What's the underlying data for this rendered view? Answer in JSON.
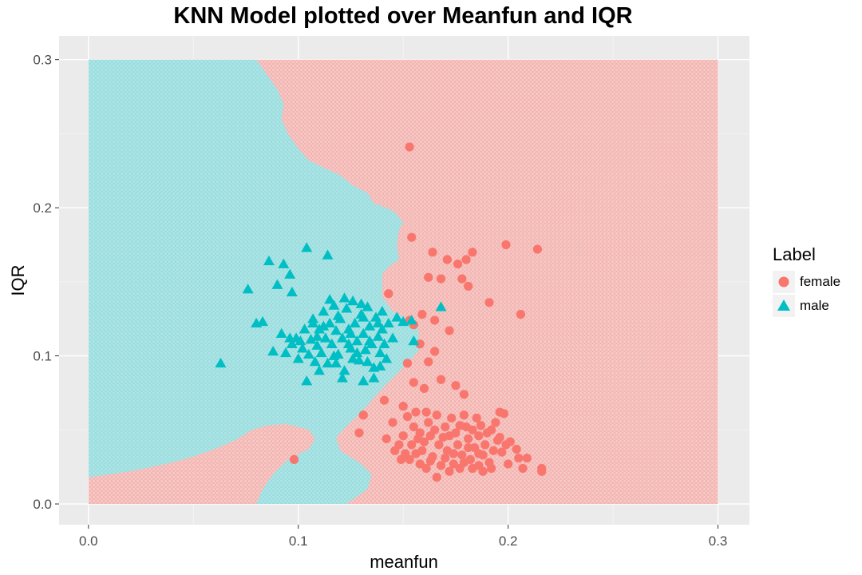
{
  "chart_data": {
    "type": "scatter",
    "title": "KNN Model plotted over Meanfun and IQR",
    "xlabel": "meanfun",
    "ylabel": "IQR",
    "xlim": [
      -0.014,
      0.315
    ],
    "ylim": [
      -0.014,
      0.316
    ],
    "x_ticks": [
      0.0,
      0.1,
      0.2,
      0.3
    ],
    "x_tick_labels": [
      "0.0",
      "0.1",
      "0.2",
      "0.3"
    ],
    "y_ticks": [
      0.0,
      0.1,
      0.2,
      0.3
    ],
    "y_tick_labels": [
      "0.0",
      "0.1",
      "0.2",
      "0.3"
    ],
    "grid": true,
    "panel_background": "#ebebeb",
    "legend": {
      "title": "Label",
      "position": "right",
      "entries": [
        {
          "name": "female",
          "color": "#f8766d",
          "shape": "circle"
        },
        {
          "name": "male",
          "color": "#00bfc4",
          "shape": "triangle"
        }
      ]
    },
    "decision_region": {
      "x_range": [
        0.0,
        0.3
      ],
      "y_range": [
        0.0,
        0.3
      ],
      "male_boundary_upper": [
        [
          0.0,
          0.3
        ],
        [
          0.08,
          0.3
        ],
        [
          0.085,
          0.29
        ],
        [
          0.09,
          0.28
        ],
        [
          0.093,
          0.27
        ],
        [
          0.092,
          0.26
        ],
        [
          0.095,
          0.25
        ],
        [
          0.1,
          0.24
        ],
        [
          0.105,
          0.232
        ],
        [
          0.112,
          0.227
        ],
        [
          0.12,
          0.222
        ],
        [
          0.126,
          0.215
        ],
        [
          0.133,
          0.21
        ],
        [
          0.136,
          0.203
        ],
        [
          0.142,
          0.2
        ],
        [
          0.146,
          0.197
        ],
        [
          0.15,
          0.19
        ],
        [
          0.148,
          0.185
        ],
        [
          0.147,
          0.175
        ],
        [
          0.148,
          0.165
        ],
        [
          0.143,
          0.16
        ],
        [
          0.14,
          0.155
        ],
        [
          0.14,
          0.14
        ],
        [
          0.145,
          0.13
        ],
        [
          0.152,
          0.125
        ],
        [
          0.157,
          0.12
        ],
        [
          0.158,
          0.105
        ],
        [
          0.152,
          0.095
        ],
        [
          0.145,
          0.085
        ],
        [
          0.14,
          0.078
        ],
        [
          0.135,
          0.07
        ],
        [
          0.13,
          0.062
        ],
        [
          0.124,
          0.054
        ],
        [
          0.118,
          0.045
        ],
        [
          0.12,
          0.036
        ],
        [
          0.13,
          0.027
        ],
        [
          0.135,
          0.02
        ],
        [
          0.133,
          0.01
        ],
        [
          0.123,
          0.0
        ]
      ],
      "male_boundary_lower": [
        [
          0.0,
          0.018
        ],
        [
          0.01,
          0.02
        ],
        [
          0.02,
          0.022
        ],
        [
          0.03,
          0.025
        ],
        [
          0.04,
          0.028
        ],
        [
          0.05,
          0.032
        ],
        [
          0.06,
          0.037
        ],
        [
          0.07,
          0.043
        ],
        [
          0.078,
          0.05
        ],
        [
          0.085,
          0.053
        ],
        [
          0.094,
          0.054
        ],
        [
          0.1,
          0.052
        ],
        [
          0.105,
          0.05
        ],
        [
          0.108,
          0.044
        ],
        [
          0.105,
          0.037
        ],
        [
          0.095,
          0.03
        ],
        [
          0.088,
          0.02
        ],
        [
          0.083,
          0.01
        ],
        [
          0.08,
          0.0
        ]
      ]
    },
    "series": [
      {
        "name": "female",
        "points": [
          [
            0.153,
            0.241
          ],
          [
            0.154,
            0.18
          ],
          [
            0.164,
            0.17
          ],
          [
            0.168,
            0.152
          ],
          [
            0.162,
            0.153
          ],
          [
            0.171,
            0.165
          ],
          [
            0.176,
            0.162
          ],
          [
            0.18,
            0.165
          ],
          [
            0.183,
            0.17
          ],
          [
            0.199,
            0.175
          ],
          [
            0.214,
            0.172
          ],
          [
            0.178,
            0.152
          ],
          [
            0.181,
            0.147
          ],
          [
            0.143,
            0.142
          ],
          [
            0.191,
            0.136
          ],
          [
            0.206,
            0.128
          ],
          [
            0.153,
            0.124
          ],
          [
            0.159,
            0.128
          ],
          [
            0.165,
            0.124
          ],
          [
            0.172,
            0.117
          ],
          [
            0.155,
            0.121
          ],
          [
            0.158,
            0.108
          ],
          [
            0.165,
            0.103
          ],
          [
            0.152,
            0.095
          ],
          [
            0.162,
            0.096
          ],
          [
            0.155,
            0.082
          ],
          [
            0.168,
            0.084
          ],
          [
            0.16,
            0.078
          ],
          [
            0.175,
            0.08
          ],
          [
            0.179,
            0.074
          ],
          [
            0.141,
            0.07
          ],
          [
            0.15,
            0.066
          ],
          [
            0.131,
            0.06
          ],
          [
            0.129,
            0.048
          ],
          [
            0.145,
            0.055
          ],
          [
            0.098,
            0.03
          ],
          [
            0.142,
            0.044
          ],
          [
            0.148,
            0.04
          ],
          [
            0.15,
            0.046
          ],
          [
            0.152,
            0.059
          ],
          [
            0.155,
            0.052
          ],
          [
            0.158,
            0.048
          ],
          [
            0.16,
            0.042
          ],
          [
            0.162,
            0.055
          ],
          [
            0.165,
            0.05
          ],
          [
            0.167,
            0.04
          ],
          [
            0.169,
            0.045
          ],
          [
            0.171,
            0.036
          ],
          [
            0.173,
            0.058
          ],
          [
            0.175,
            0.048
          ],
          [
            0.176,
            0.04
          ],
          [
            0.178,
            0.033
          ],
          [
            0.18,
            0.052
          ],
          [
            0.181,
            0.044
          ],
          [
            0.182,
            0.03
          ],
          [
            0.184,
            0.038
          ],
          [
            0.185,
            0.058
          ],
          [
            0.186,
            0.046
          ],
          [
            0.188,
            0.033
          ],
          [
            0.189,
            0.04
          ],
          [
            0.19,
            0.048
          ],
          [
            0.191,
            0.028
          ],
          [
            0.193,
            0.036
          ],
          [
            0.194,
            0.055
          ],
          [
            0.195,
            0.043
          ],
          [
            0.196,
            0.062
          ],
          [
            0.197,
            0.035
          ],
          [
            0.199,
            0.04
          ],
          [
            0.198,
            0.061
          ],
          [
            0.2,
            0.027
          ],
          [
            0.201,
            0.042
          ],
          [
            0.204,
            0.037
          ],
          [
            0.205,
            0.031
          ],
          [
            0.207,
            0.024
          ],
          [
            0.209,
            0.031
          ],
          [
            0.216,
            0.024
          ],
          [
            0.216,
            0.022
          ],
          [
            0.153,
            0.03
          ],
          [
            0.156,
            0.034
          ],
          [
            0.158,
            0.027
          ],
          [
            0.161,
            0.024
          ],
          [
            0.163,
            0.029
          ],
          [
            0.166,
            0.018
          ],
          [
            0.168,
            0.026
          ],
          [
            0.17,
            0.031
          ],
          [
            0.172,
            0.022
          ],
          [
            0.174,
            0.027
          ],
          [
            0.177,
            0.024
          ],
          [
            0.179,
            0.028
          ],
          [
            0.183,
            0.024
          ],
          [
            0.186,
            0.026
          ],
          [
            0.188,
            0.022
          ],
          [
            0.146,
            0.036
          ],
          [
            0.149,
            0.03
          ],
          [
            0.151,
            0.034
          ],
          [
            0.154,
            0.04
          ],
          [
            0.157,
            0.044
          ],
          [
            0.159,
            0.036
          ],
          [
            0.163,
            0.046
          ],
          [
            0.166,
            0.06
          ],
          [
            0.17,
            0.052
          ],
          [
            0.172,
            0.046
          ],
          [
            0.177,
            0.053
          ],
          [
            0.179,
            0.06
          ],
          [
            0.183,
            0.05
          ],
          [
            0.187,
            0.053
          ],
          [
            0.192,
            0.05
          ],
          [
            0.196,
            0.045
          ],
          [
            0.161,
            0.062
          ],
          [
            0.156,
            0.062
          ],
          [
            0.164,
            0.032
          ],
          [
            0.174,
            0.034
          ],
          [
            0.181,
            0.038
          ],
          [
            0.186,
            0.034
          ],
          [
            0.192,
            0.024
          ]
        ]
      },
      {
        "name": "male",
        "points": [
          [
            0.063,
            0.095
          ],
          [
            0.076,
            0.145
          ],
          [
            0.08,
            0.122
          ],
          [
            0.083,
            0.123
          ],
          [
            0.086,
            0.164
          ],
          [
            0.09,
            0.148
          ],
          [
            0.093,
            0.162
          ],
          [
            0.096,
            0.155
          ],
          [
            0.097,
            0.143
          ],
          [
            0.104,
            0.173
          ],
          [
            0.114,
            0.168
          ],
          [
            0.092,
            0.115
          ],
          [
            0.088,
            0.103
          ],
          [
            0.094,
            0.102
          ],
          [
            0.097,
            0.108
          ],
          [
            0.099,
            0.112
          ],
          [
            0.1,
            0.098
          ],
          [
            0.102,
            0.105
          ],
          [
            0.103,
            0.118
          ],
          [
            0.105,
            0.101
          ],
          [
            0.106,
            0.111
          ],
          [
            0.107,
            0.125
          ],
          [
            0.108,
            0.096
          ],
          [
            0.109,
            0.107
          ],
          [
            0.11,
            0.118
          ],
          [
            0.111,
            0.102
          ],
          [
            0.112,
            0.13
          ],
          [
            0.113,
            0.112
          ],
          [
            0.114,
            0.095
          ],
          [
            0.115,
            0.122
          ],
          [
            0.116,
            0.108
          ],
          [
            0.117,
            0.134
          ],
          [
            0.118,
            0.117
          ],
          [
            0.119,
            0.101
          ],
          [
            0.12,
            0.125
          ],
          [
            0.121,
            0.112
          ],
          [
            0.122,
            0.09
          ],
          [
            0.123,
            0.132
          ],
          [
            0.124,
            0.118
          ],
          [
            0.125,
            0.105
          ],
          [
            0.126,
            0.137
          ],
          [
            0.127,
            0.122
          ],
          [
            0.128,
            0.11
          ],
          [
            0.129,
            0.097
          ],
          [
            0.13,
            0.128
          ],
          [
            0.131,
            0.115
          ],
          [
            0.132,
            0.104
          ],
          [
            0.133,
            0.133
          ],
          [
            0.134,
            0.12
          ],
          [
            0.135,
            0.108
          ],
          [
            0.136,
            0.092
          ],
          [
            0.137,
            0.126
          ],
          [
            0.138,
            0.113
          ],
          [
            0.139,
            0.102
          ],
          [
            0.14,
            0.118
          ],
          [
            0.141,
            0.108
          ],
          [
            0.143,
            0.122
          ],
          [
            0.145,
            0.112
          ],
          [
            0.147,
            0.126
          ],
          [
            0.15,
            0.123
          ],
          [
            0.154,
            0.124
          ],
          [
            0.155,
            0.11
          ],
          [
            0.168,
            0.133
          ],
          [
            0.104,
            0.083
          ],
          [
            0.121,
            0.085
          ],
          [
            0.131,
            0.083
          ],
          [
            0.136,
            0.085
          ],
          [
            0.118,
            0.095
          ],
          [
            0.11,
            0.09
          ],
          [
            0.126,
            0.098
          ],
          [
            0.133,
            0.096
          ],
          [
            0.139,
            0.093
          ],
          [
            0.115,
            0.138
          ],
          [
            0.122,
            0.139
          ],
          [
            0.13,
            0.135
          ],
          [
            0.107,
            0.122
          ],
          [
            0.112,
            0.12
          ],
          [
            0.119,
            0.127
          ],
          [
            0.125,
            0.115
          ],
          [
            0.128,
            0.102
          ],
          [
            0.134,
            0.11
          ],
          [
            0.138,
            0.122
          ],
          [
            0.142,
            0.098
          ],
          [
            0.109,
            0.113
          ],
          [
            0.101,
            0.11
          ],
          [
            0.096,
            0.112
          ],
          [
            0.124,
            0.108
          ],
          [
            0.131,
            0.126
          ],
          [
            0.117,
            0.1
          ],
          [
            0.14,
            0.13
          ]
        ]
      }
    ]
  }
}
